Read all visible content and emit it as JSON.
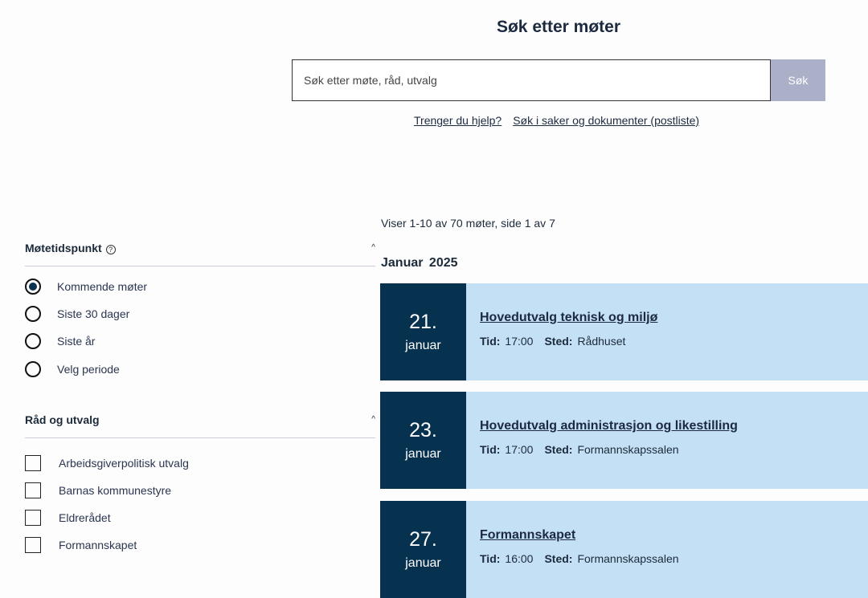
{
  "header": {
    "title": "Søk etter møter",
    "search_placeholder": "Søk etter møte, råd, utvalg",
    "search_button": "Søk",
    "links": [
      "Trenger du hjelp?",
      "Søk i saker og dokumenter (postliste)"
    ]
  },
  "results": {
    "count_text": "Viser 1-10 av 70 møter, side 1 av 7",
    "month": "Januar 2025",
    "time_label": "Tid:",
    "place_label": "Sted:",
    "meetings": [
      {
        "day": "21.",
        "month": "januar",
        "title": "Hovedutvalg teknisk og miljø",
        "time": "17:00",
        "place": "Rådhuset"
      },
      {
        "day": "23.",
        "month": "januar",
        "title": "Hovedutvalg administrasjon og likestilling",
        "time": "17:00",
        "place": "Formannskapssalen"
      },
      {
        "day": "27.",
        "month": "januar",
        "title": "Formannskapet",
        "time": "16:00",
        "place": "Formannskapssalen"
      }
    ]
  },
  "filters": {
    "time": {
      "label": "Møtetidspunkt",
      "options": [
        "Kommende møter",
        "Siste 30 dager",
        "Siste år",
        "Velg periode"
      ],
      "selected": "Kommende møter"
    },
    "bodies": {
      "label": "Råd og utvalg",
      "options": [
        "Arbeidsgiverpolitisk utvalg",
        "Barnas kommunestyre",
        "Eldrerådet",
        "Formannskapet"
      ]
    }
  },
  "colors": {
    "navy": "#07324f",
    "card": "#c4e0f5",
    "button": "#aab0c8"
  }
}
